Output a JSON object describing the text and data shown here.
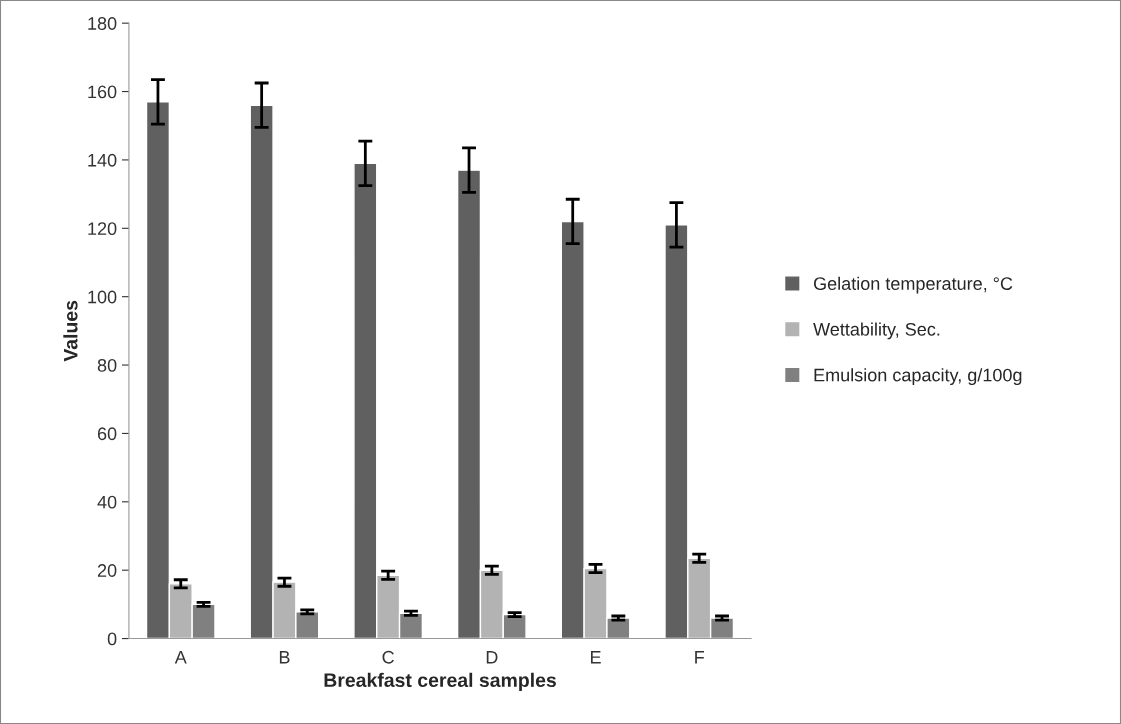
{
  "chart_data": {
    "type": "bar",
    "xlabel": "Breakfast cereal samples",
    "ylabel": "Values",
    "categories": [
      "A",
      "B",
      "C",
      "D",
      "E",
      "F"
    ],
    "series": [
      {
        "name": "Gelation temperature, °C",
        "color": "#606060",
        "values": [
          157,
          156,
          139,
          137,
          122,
          121
        ],
        "errors": [
          6.5,
          6.5,
          6.5,
          6.5,
          6.5,
          6.5
        ]
      },
      {
        "name": "Wettability, Sec.",
        "color": "#b3b3b3",
        "values": [
          16,
          16.5,
          18.5,
          20,
          20.5,
          23.5
        ],
        "errors": [
          1.2,
          1.2,
          1.2,
          1.2,
          1.2,
          1.2
        ]
      },
      {
        "name": "Emulsion capacity, g/100g",
        "color": "#808080",
        "values": [
          10,
          7.8,
          7.4,
          7,
          6,
          6
        ],
        "errors": [
          0.6,
          0.6,
          0.6,
          0.6,
          0.6,
          0.6
        ]
      }
    ],
    "ylim": [
      0,
      180
    ],
    "yticks": [
      0,
      20,
      40,
      60,
      80,
      100,
      120,
      140,
      160,
      180
    ],
    "grid": false,
    "legend": "right"
  }
}
